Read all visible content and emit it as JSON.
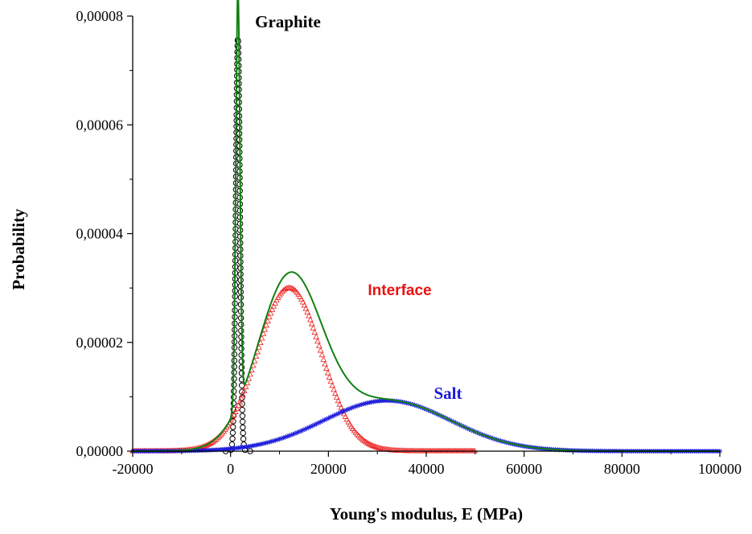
{
  "chart_data": {
    "type": "line",
    "xlabel": "Young's modulus, E (MPa)",
    "ylabel": "Probability",
    "xlim": [
      -20000,
      100000
    ],
    "ylim": [
      0,
      8e-05
    ],
    "x_ticks": [
      -20000,
      0,
      20000,
      40000,
      60000,
      80000,
      100000
    ],
    "x_tick_labels": [
      "-20000",
      "0",
      "20000",
      "40000",
      "60000",
      "80000",
      "100000"
    ],
    "y_ticks": [
      0,
      2e-05,
      4e-05,
      6e-05,
      8e-05
    ],
    "y_tick_labels": [
      "0,00000",
      "0,00002",
      "0,00004",
      "0,00006",
      "0,00008"
    ],
    "grid": false,
    "annotations": [
      {
        "text": "Graphite",
        "color": "#000000",
        "style": "serif"
      },
      {
        "text": "Interface",
        "color": "#ee1111",
        "style": "sans"
      },
      {
        "text": "Salt",
        "color": "#1a1adc",
        "style": "serif"
      }
    ],
    "series": [
      {
        "name": "Graphite",
        "kind": "gaussian",
        "marker": "circle",
        "color": "#000000",
        "mean": 1500,
        "sd": 420,
        "peak": 7.6e-05,
        "x_range": [
          -1000,
          4500
        ]
      },
      {
        "name": "Interface",
        "kind": "gaussian",
        "marker": "triangle",
        "color": "#ee2222",
        "mean": 12000,
        "sd": 6500,
        "peak": 3e-05,
        "x_range": [
          -20000,
          50000
        ]
      },
      {
        "name": "Salt",
        "kind": "gaussian",
        "marker": "star",
        "color": "#1a1adc",
        "mean": 32000,
        "sd": 13000,
        "peak": 9.3e-06,
        "x_range": [
          -20000,
          100000
        ]
      },
      {
        "kind": "sum",
        "marker": "none",
        "color": "#128012",
        "x_range": [
          -20000,
          100000
        ]
      }
    ]
  }
}
